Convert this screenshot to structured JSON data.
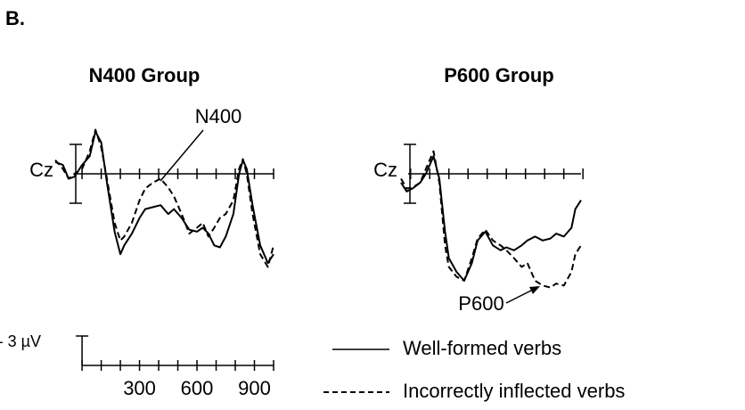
{
  "panel_label": "B.",
  "chart_data": [
    {
      "type": "line",
      "title": "N400 Group",
      "electrode": "Cz",
      "xlim": [
        -140,
        1000
      ],
      "ylim": [
        -6,
        12
      ],
      "y_inverted": true,
      "xticks": [
        300,
        600,
        900
      ],
      "minor_xticks": [
        0,
        100,
        200,
        300,
        400,
        500,
        600,
        700,
        800,
        900,
        1000
      ],
      "scale_bar": {
        "value": -3,
        "label": "- 3 µV"
      },
      "annotations": [
        {
          "text": "N400"
        }
      ],
      "x": [
        -140,
        -100,
        -70,
        -40,
        0,
        40,
        70,
        100,
        130,
        170,
        200,
        220,
        260,
        300,
        330,
        370,
        410,
        450,
        480,
        520,
        560,
        600,
        630,
        660,
        690,
        720,
        750,
        790,
        820,
        840,
        860,
        890,
        930,
        970,
        1000
      ],
      "series": [
        {
          "name": "Well-formed verbs",
          "color": "#000000",
          "dash": false,
          "values": [
            -1.2,
            -0.9,
            0.5,
            0.3,
            -0.9,
            -1.8,
            -4.3,
            -3.2,
            0.9,
            5.9,
            8.2,
            7.3,
            6.1,
            4.5,
            3.6,
            3.4,
            3.2,
            4.1,
            3.6,
            4.5,
            5.7,
            5.9,
            5.5,
            6.1,
            7.3,
            7.5,
            6.4,
            4.1,
            0,
            -1.4,
            -0.5,
            3.2,
            7.3,
            9.1,
            8.2
          ]
        },
        {
          "name": "Incorrectly inflected verbs",
          "color": "#000000",
          "dash": true,
          "values": [
            -1.4,
            -0.5,
            0.5,
            0,
            -0.5,
            -2.3,
            -4.5,
            -2.7,
            0.5,
            5,
            6.8,
            6.4,
            5,
            2.7,
            1.5,
            0.9,
            0.5,
            1.4,
            2.3,
            4.1,
            6.1,
            5.5,
            5,
            6.4,
            5.5,
            4.5,
            4.1,
            2.7,
            -0.5,
            -1.5,
            0,
            4.1,
            8.2,
            9.5,
            7.3
          ]
        }
      ]
    },
    {
      "type": "line",
      "title": "P600 Group",
      "electrode": "Cz",
      "xlim": [
        -50,
        890
      ],
      "ylim": [
        -6,
        12
      ],
      "y_inverted": true,
      "minor_xticks": [
        0,
        100,
        200,
        300,
        400,
        500,
        600,
        700,
        800,
        900
      ],
      "annotations": [
        {
          "text": "P600"
        }
      ],
      "x": [
        -50,
        -20,
        10,
        50,
        80,
        120,
        150,
        180,
        200,
        240,
        280,
        320,
        350,
        390,
        430,
        470,
        500,
        540,
        580,
        610,
        650,
        690,
        730,
        760,
        800,
        840,
        860,
        890
      ],
      "series": [
        {
          "name": "Well-formed verbs",
          "color": "#000000",
          "dash": false,
          "values": [
            0.9,
            1.8,
            1.5,
            0.9,
            0,
            -1.8,
            0.5,
            5.9,
            8.6,
            10,
            10.9,
            9.1,
            6.8,
            5.9,
            7.3,
            7.8,
            7.5,
            7.8,
            7.3,
            6.8,
            6.4,
            6.8,
            6.6,
            6.1,
            6.4,
            5.5,
            3.6,
            2.7
          ]
        },
        {
          "name": "Incorrectly inflected verbs",
          "color": "#000000",
          "dash": true,
          "values": [
            0.5,
            1.5,
            1.4,
            0.9,
            -0.5,
            -2.3,
            0.9,
            7.3,
            9.5,
            10.5,
            10.9,
            8.6,
            6.6,
            5.7,
            6.8,
            7.3,
            7.8,
            8.6,
            9.5,
            9.1,
            10.9,
            11.4,
            11.6,
            11.2,
            11.4,
            10,
            8.2,
            7.3
          ]
        }
      ]
    }
  ]
}
